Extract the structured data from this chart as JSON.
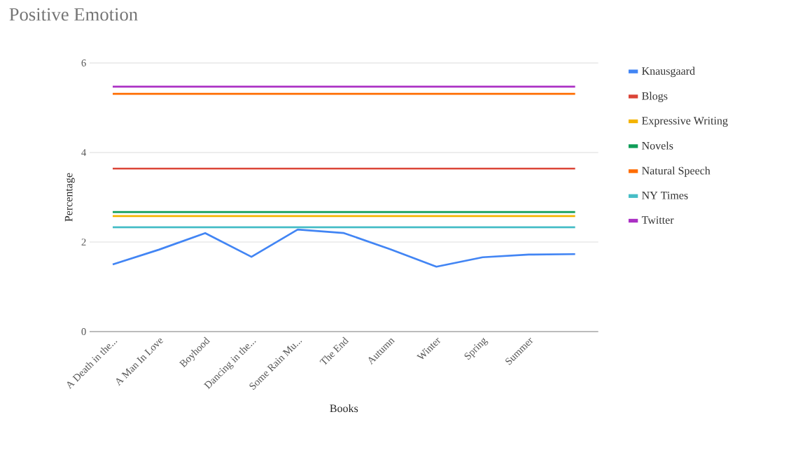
{
  "chart_data": {
    "type": "line",
    "title": "Positive Emotion",
    "xlabel": "Books",
    "ylabel": "Percentage",
    "categories": [
      "A Death in the...",
      "A Man In Love",
      "Boyhood",
      "Dancing in the...",
      "Some Rain Mu...",
      "The End",
      "Autumn",
      "Winter",
      "Spring",
      "Summer",
      null
    ],
    "series": [
      {
        "name": "Knausgaard",
        "color": "#4285f4",
        "values": [
          1.5,
          1.83,
          2.2,
          1.67,
          2.28,
          2.2,
          1.84,
          1.45,
          1.66,
          1.72,
          1.73
        ]
      },
      {
        "name": "Blogs",
        "color": "#db4437",
        "values": [
          3.64,
          3.64,
          3.64,
          3.64,
          3.64,
          3.64,
          3.64,
          3.64,
          3.64,
          3.64,
          3.64
        ]
      },
      {
        "name": "Expressive Writing",
        "color": "#f4b400",
        "values": [
          2.58,
          2.58,
          2.58,
          2.58,
          2.58,
          2.58,
          2.58,
          2.58,
          2.58,
          2.58,
          2.58
        ]
      },
      {
        "name": "Novels",
        "color": "#0f9d58",
        "values": [
          2.67,
          2.67,
          2.67,
          2.67,
          2.67,
          2.67,
          2.67,
          2.67,
          2.67,
          2.67,
          2.67
        ]
      },
      {
        "name": "Natural Speech",
        "color": "#ff6d00",
        "values": [
          5.31,
          5.31,
          5.31,
          5.31,
          5.31,
          5.31,
          5.31,
          5.31,
          5.31,
          5.31,
          5.31
        ]
      },
      {
        "name": "NY Times",
        "color": "#46bdc6",
        "values": [
          2.33,
          2.33,
          2.33,
          2.33,
          2.33,
          2.33,
          2.33,
          2.33,
          2.33,
          2.33,
          2.33
        ]
      },
      {
        "name": "Twitter",
        "color": "#ab30c4",
        "values": [
          5.47,
          5.47,
          5.47,
          5.47,
          5.47,
          5.47,
          5.47,
          5.47,
          5.47,
          5.47,
          5.47
        ]
      }
    ],
    "ylim": [
      0,
      6
    ],
    "yticks": [
      0,
      2,
      4,
      6
    ],
    "grid": "y",
    "legend": "right"
  }
}
